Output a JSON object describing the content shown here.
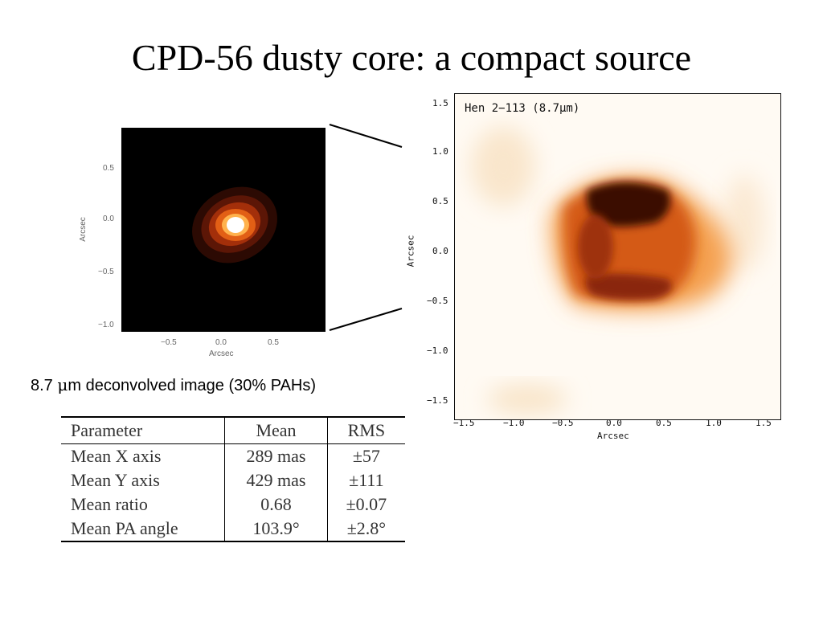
{
  "slide": {
    "title": "CPD-56 dusty core: a compact source",
    "caption_prefix": "8.7 ",
    "caption_mu": "μ",
    "caption_rest": "m deconvolved image (30% PAHs)"
  },
  "left_image": {
    "x_label": "Arcsec",
    "y_label": "Arcsec",
    "x_ticks": [
      "−0.5",
      "0.0",
      "0.5"
    ],
    "y_ticks": [
      "0.5",
      "0.0",
      "−0.5",
      "−1.0"
    ]
  },
  "right_image": {
    "title": "Hen 2−113 (8.7μm)",
    "x_label": "Arcsec",
    "y_label": "Arcsec",
    "x_ticks": [
      "−1.5",
      "−1.0",
      "−0.5",
      "0.0",
      "0.5",
      "1.0",
      "1.5"
    ],
    "y_ticks": [
      "1.5",
      "1.0",
      "0.5",
      "0.0",
      "−0.5",
      "−1.0",
      "−1.5"
    ]
  },
  "table": {
    "headers": [
      "Parameter",
      "Mean",
      "RMS"
    ],
    "rows": [
      [
        "Mean X axis",
        "289 mas",
        "±57"
      ],
      [
        "Mean Y axis",
        "429 mas",
        "±111"
      ],
      [
        "Mean ratio",
        "0.68",
        "±0.07"
      ],
      [
        "Mean PA angle",
        "103.9°",
        "±2.8°"
      ]
    ]
  },
  "colors": {
    "background": "#ffffff",
    "left_background": "#000000",
    "hot_core": "#ffffff",
    "heat_orange": "#e8701a",
    "heat_dark": "#2a0a04"
  }
}
